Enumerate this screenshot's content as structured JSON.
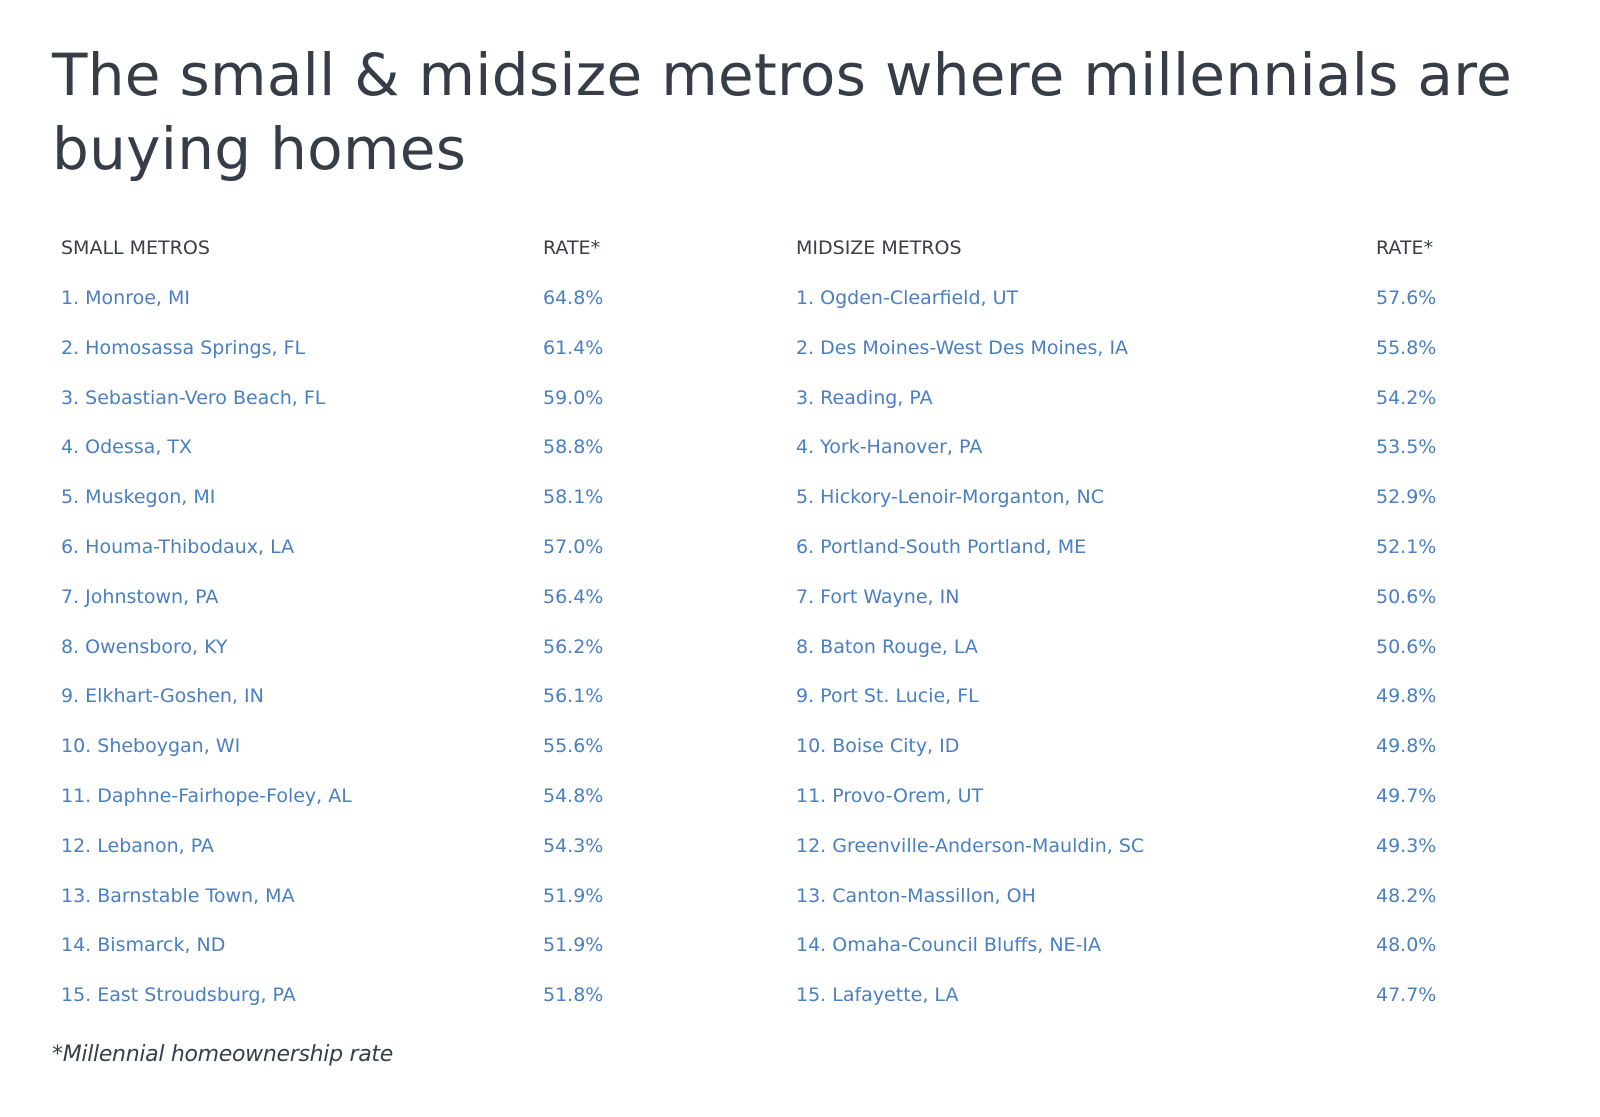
{
  "title": "The small & midsize metros where millennials are buying homes",
  "small": {
    "header": "SMALL METROS",
    "rate_header": "RATE*",
    "rows": [
      {
        "name": "1. Monroe, MI",
        "rate": "64.8%"
      },
      {
        "name": "2. Homosassa Springs, FL",
        "rate": "61.4%"
      },
      {
        "name": "3. Sebastian-Vero Beach, FL",
        "rate": "59.0%"
      },
      {
        "name": "4. Odessa, TX",
        "rate": "58.8%"
      },
      {
        "name": "5. Muskegon, MI",
        "rate": "58.1%"
      },
      {
        "name": "6. Houma-Thibodaux, LA",
        "rate": "57.0%"
      },
      {
        "name": "7. Johnstown, PA",
        "rate": "56.4%"
      },
      {
        "name": "8. Owensboro, KY",
        "rate": "56.2%"
      },
      {
        "name": "9. Elkhart-Goshen, IN",
        "rate": "56.1%"
      },
      {
        "name": "10. Sheboygan, WI",
        "rate": "55.6%"
      },
      {
        "name": "11. Daphne-Fairhope-Foley, AL",
        "rate": "54.8%"
      },
      {
        "name": "12. Lebanon, PA",
        "rate": "54.3%"
      },
      {
        "name": "13. Barnstable Town, MA",
        "rate": "51.9%"
      },
      {
        "name": "14. Bismarck, ND",
        "rate": "51.9%"
      },
      {
        "name": "15. East Stroudsburg, PA",
        "rate": "51.8%"
      }
    ]
  },
  "midsize": {
    "header": "MIDSIZE METROS",
    "rate_header": "RATE*",
    "rows": [
      {
        "name": "1. Ogden-Clearfield, UT",
        "rate": "57.6%"
      },
      {
        "name": "2. Des Moines-West Des Moines, IA",
        "rate": "55.8%"
      },
      {
        "name": "3. Reading, PA",
        "rate": "54.2%"
      },
      {
        "name": "4. York-Hanover, PA",
        "rate": "53.5%"
      },
      {
        "name": "5. Hickory-Lenoir-Morganton, NC",
        "rate": "52.9%"
      },
      {
        "name": "6. Portland-South Portland, ME",
        "rate": "52.1%"
      },
      {
        "name": "7. Fort Wayne, IN",
        "rate": "50.6%"
      },
      {
        "name": "8. Baton Rouge, LA",
        "rate": "50.6%"
      },
      {
        "name": "9. Port St. Lucie, FL",
        "rate": "49.8%"
      },
      {
        "name": "10. Boise City, ID",
        "rate": "49.8%"
      },
      {
        "name": "11. Provo-Orem, UT",
        "rate": "49.7%"
      },
      {
        "name": "12. Greenville-Anderson-Mauldin, SC",
        "rate": "49.3%"
      },
      {
        "name": "13. Canton-Massillon, OH",
        "rate": "48.2%"
      },
      {
        "name": "14. Omaha-Council Bluffs, NE-IA",
        "rate": "48.0%"
      },
      {
        "name": "15. Lafayette, LA",
        "rate": "47.7%"
      }
    ]
  },
  "footnote": "*Millennial homeownership rate"
}
